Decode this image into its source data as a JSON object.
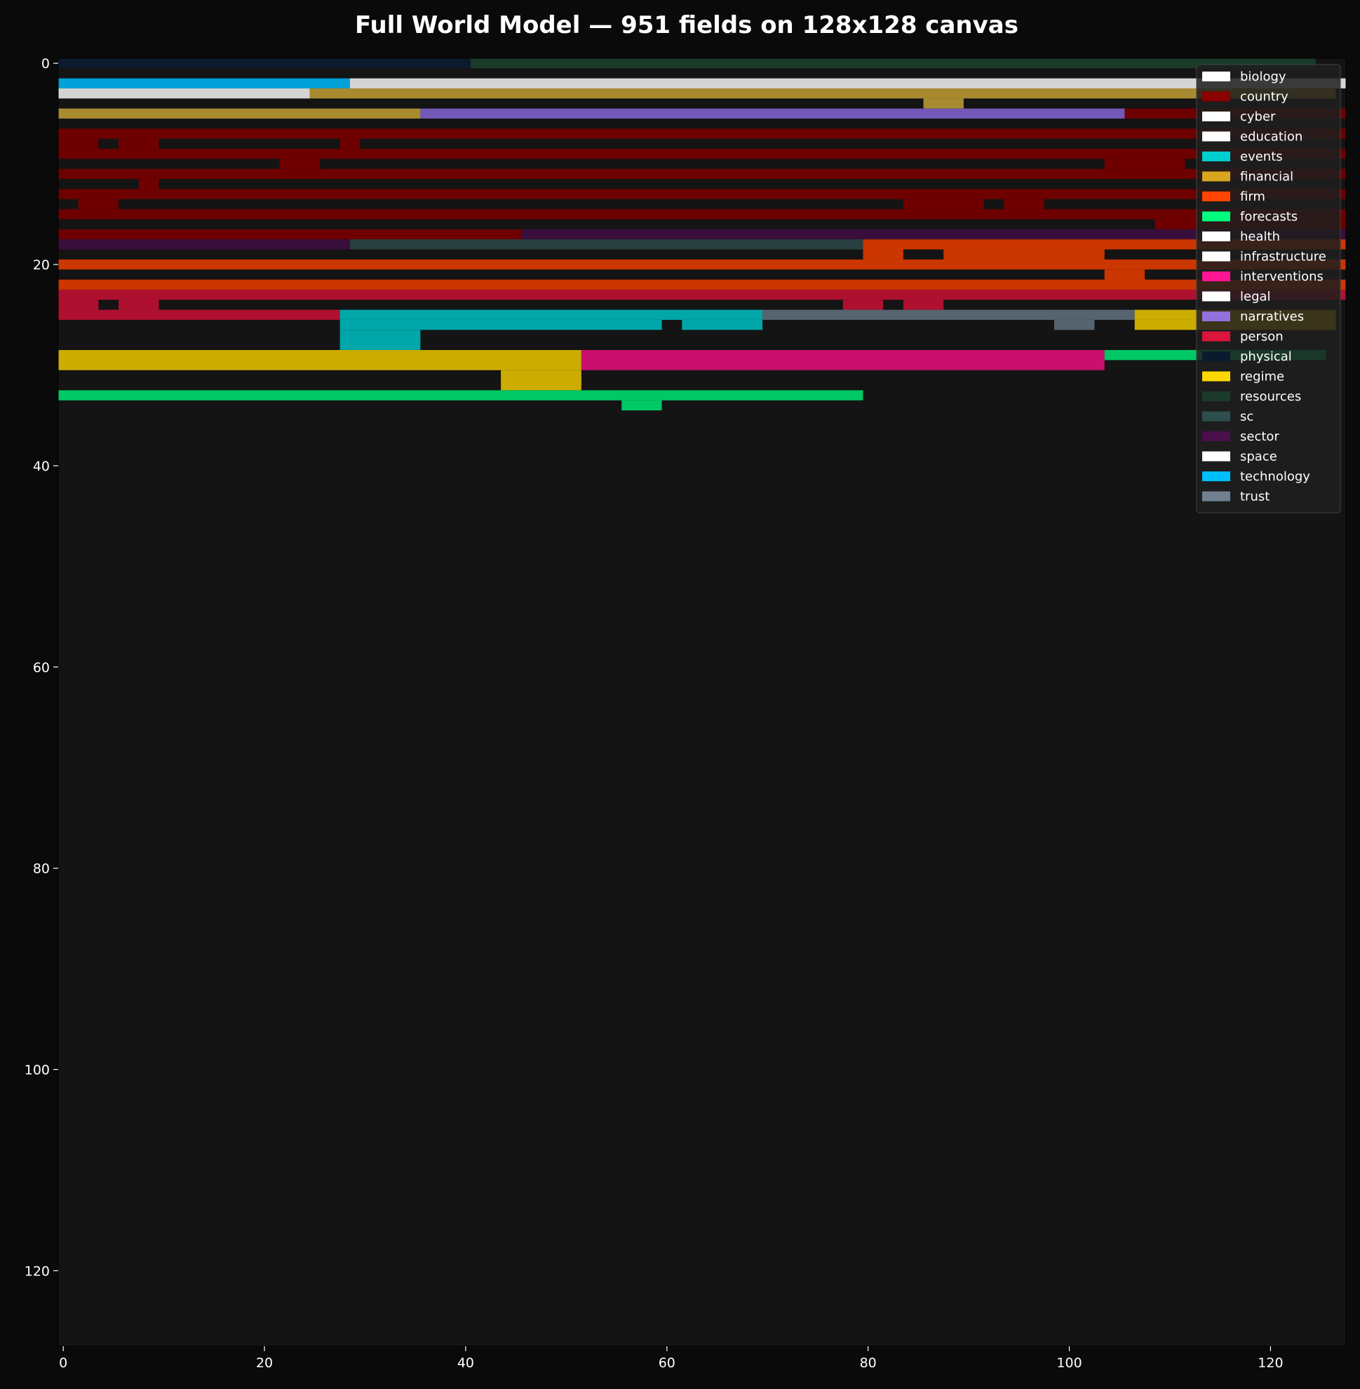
{
  "chart_data": {
    "type": "heatmap",
    "title": "Full World Model — 951 fields on 128x128 canvas",
    "xlabel": "",
    "ylabel": "",
    "xlim": [
      0,
      128
    ],
    "ylim": [
      128,
      0
    ],
    "y_inverted": true,
    "grid": false,
    "background_color": "#141414",
    "x_ticks": [
      "0",
      "20",
      "40",
      "60",
      "80",
      "100",
      "120"
    ],
    "y_ticks": [
      "0",
      "20",
      "40",
      "60",
      "80",
      "100",
      "120"
    ],
    "legend_position": "top-right",
    "legend": [
      {
        "name": "biology",
        "color": "#ffffff"
      },
      {
        "name": "country",
        "color": "#8b0000"
      },
      {
        "name": "cyber",
        "color": "#ffffff"
      },
      {
        "name": "education",
        "color": "#ffffff"
      },
      {
        "name": "events",
        "color": "#00ced1"
      },
      {
        "name": "financial",
        "color": "#daa520"
      },
      {
        "name": "firm",
        "color": "#ff4500"
      },
      {
        "name": "forecasts",
        "color": "#00ff7f"
      },
      {
        "name": "health",
        "color": "#ffffff"
      },
      {
        "name": "infrastructure",
        "color": "#ffffff"
      },
      {
        "name": "interventions",
        "color": "#ff1493"
      },
      {
        "name": "legal",
        "color": "#ffffff"
      },
      {
        "name": "narratives",
        "color": "#9370db"
      },
      {
        "name": "person",
        "color": "#dc143c"
      },
      {
        "name": "physical",
        "color": "#0b1a2e"
      },
      {
        "name": "regime",
        "color": "#ffd700"
      },
      {
        "name": "resources",
        "color": "#1a3a2a"
      },
      {
        "name": "sc",
        "color": "#2f4f4f"
      },
      {
        "name": "sector",
        "color": "#4b0f4b"
      },
      {
        "name": "space",
        "color": "#ffffff"
      },
      {
        "name": "technology",
        "color": "#00bfff"
      },
      {
        "name": "trust",
        "color": "#708090"
      }
    ],
    "cells": [
      {
        "category": "physical",
        "x0": 0,
        "x1": 41,
        "y0": 0,
        "y1": 1,
        "color": "#0b1a2e"
      },
      {
        "category": "resources",
        "x0": 41,
        "x1": 125,
        "y0": 0,
        "y1": 1,
        "color": "#1a3a2a"
      },
      {
        "category": "technology",
        "x0": 0,
        "x1": 29,
        "y0": 2,
        "y1": 3,
        "color": "#00a0d8"
      },
      {
        "category": "cyber",
        "x0": 29,
        "x1": 128,
        "y0": 2,
        "y1": 3,
        "color": "#d4d4d4"
      },
      {
        "category": "education",
        "x0": 0,
        "x1": 25,
        "y0": 3,
        "y1": 4,
        "color": "#d4d4d4"
      },
      {
        "category": "financial",
        "x0": 25,
        "x1": 127,
        "y0": 3,
        "y1": 4,
        "color": "#a88a30"
      },
      {
        "category": "financial",
        "x0": 86,
        "x1": 90,
        "y0": 4,
        "y1": 5,
        "color": "#a88a30"
      },
      {
        "category": "financial",
        "x0": 0,
        "x1": 36,
        "y0": 5,
        "y1": 6,
        "color": "#a88a30"
      },
      {
        "category": "narratives",
        "x0": 36,
        "x1": 106,
        "y0": 5,
        "y1": 6,
        "color": "#7358b8"
      },
      {
        "category": "country",
        "x0": 106,
        "x1": 128,
        "y0": 5,
        "y1": 6,
        "color": "#6e0000"
      },
      {
        "category": "country",
        "x0": 0,
        "x1": 128,
        "y0": 7,
        "y1": 8,
        "color": "#6e0000"
      },
      {
        "category": "country",
        "x0": 0,
        "x1": 4,
        "y0": 8,
        "y1": 9,
        "color": "#6e0000"
      },
      {
        "category": "country",
        "x0": 6,
        "x1": 10,
        "y0": 8,
        "y1": 9,
        "color": "#6e0000"
      },
      {
        "category": "country",
        "x0": 28,
        "x1": 30,
        "y0": 8,
        "y1": 9,
        "color": "#6e0000"
      },
      {
        "category": "country",
        "x0": 0,
        "x1": 128,
        "y0": 9,
        "y1": 10,
        "color": "#6e0000"
      },
      {
        "category": "country",
        "x0": 22,
        "x1": 26,
        "y0": 10,
        "y1": 11,
        "color": "#6e0000"
      },
      {
        "category": "country",
        "x0": 104,
        "x1": 112,
        "y0": 10,
        "y1": 11,
        "color": "#6e0000"
      },
      {
        "category": "country",
        "x0": 0,
        "x1": 128,
        "y0": 11,
        "y1": 12,
        "color": "#6e0000"
      },
      {
        "category": "country",
        "x0": 8,
        "x1": 10,
        "y0": 12,
        "y1": 13,
        "color": "#6e0000"
      },
      {
        "category": "country",
        "x0": 0,
        "x1": 128,
        "y0": 13,
        "y1": 14,
        "color": "#6e0000"
      },
      {
        "category": "country",
        "x0": 2,
        "x1": 6,
        "y0": 14,
        "y1": 15,
        "color": "#6e0000"
      },
      {
        "category": "country",
        "x0": 84,
        "x1": 92,
        "y0": 14,
        "y1": 15,
        "color": "#6e0000"
      },
      {
        "category": "country",
        "x0": 94,
        "x1": 98,
        "y0": 14,
        "y1": 15,
        "color": "#6e0000"
      },
      {
        "category": "country",
        "x0": 0,
        "x1": 128,
        "y0": 15,
        "y1": 16,
        "color": "#6e0000"
      },
      {
        "category": "country",
        "x0": 109,
        "x1": 128,
        "y0": 16,
        "y1": 17,
        "color": "#6e0000"
      },
      {
        "category": "country",
        "x0": 0,
        "x1": 46,
        "y0": 17,
        "y1": 18,
        "color": "#6e0000"
      },
      {
        "category": "sector",
        "x0": 46,
        "x1": 128,
        "y0": 17,
        "y1": 18,
        "color": "#3a0e3a"
      },
      {
        "category": "sector",
        "x0": 0,
        "x1": 29,
        "y0": 18,
        "y1": 19,
        "color": "#3a0e3a"
      },
      {
        "category": "sc",
        "x0": 29,
        "x1": 80,
        "y0": 18,
        "y1": 19,
        "color": "#284040"
      },
      {
        "category": "firm",
        "x0": 80,
        "x1": 128,
        "y0": 18,
        "y1": 19,
        "color": "#cc3600"
      },
      {
        "category": "firm",
        "x0": 80,
        "x1": 84,
        "y0": 19,
        "y1": 20,
        "color": "#cc3600"
      },
      {
        "category": "firm",
        "x0": 88,
        "x1": 104,
        "y0": 19,
        "y1": 20,
        "color": "#cc3600"
      },
      {
        "category": "firm",
        "x0": 0,
        "x1": 128,
        "y0": 20,
        "y1": 21,
        "color": "#cc3600"
      },
      {
        "category": "firm",
        "x0": 104,
        "x1": 108,
        "y0": 21,
        "y1": 22,
        "color": "#cc3600"
      },
      {
        "category": "firm",
        "x0": 0,
        "x1": 128,
        "y0": 22,
        "y1": 23,
        "color": "#cc3600"
      },
      {
        "category": "person",
        "x0": 0,
        "x1": 128,
        "y0": 23,
        "y1": 24,
        "color": "#b01030"
      },
      {
        "category": "person",
        "x0": 0,
        "x1": 4,
        "y0": 24,
        "y1": 25,
        "color": "#b01030"
      },
      {
        "category": "person",
        "x0": 6,
        "x1": 10,
        "y0": 24,
        "y1": 25,
        "color": "#b01030"
      },
      {
        "category": "person",
        "x0": 78,
        "x1": 82,
        "y0": 24,
        "y1": 25,
        "color": "#b01030"
      },
      {
        "category": "person",
        "x0": 84,
        "x1": 88,
        "y0": 24,
        "y1": 25,
        "color": "#b01030"
      },
      {
        "category": "person",
        "x0": 0,
        "x1": 28,
        "y0": 25,
        "y1": 26,
        "color": "#b01030"
      },
      {
        "category": "events",
        "x0": 28,
        "x1": 70,
        "y0": 25,
        "y1": 26,
        "color": "#00a6a8"
      },
      {
        "category": "trust",
        "x0": 70,
        "x1": 107,
        "y0": 25,
        "y1": 26,
        "color": "#566470"
      },
      {
        "category": "regime",
        "x0": 107,
        "x1": 127,
        "y0": 25,
        "y1": 26,
        "color": "#ccac00"
      },
      {
        "category": "events",
        "x0": 28,
        "x1": 60,
        "y0": 26,
        "y1": 27,
        "color": "#00a6a8"
      },
      {
        "category": "events",
        "x0": 62,
        "x1": 70,
        "y0": 26,
        "y1": 27,
        "color": "#00a6a8"
      },
      {
        "category": "trust",
        "x0": 99,
        "x1": 103,
        "y0": 26,
        "y1": 27,
        "color": "#566470"
      },
      {
        "category": "regime",
        "x0": 107,
        "x1": 127,
        "y0": 26,
        "y1": 27,
        "color": "#ccac00"
      },
      {
        "category": "events",
        "x0": 28,
        "x1": 36,
        "y0": 27,
        "y1": 29,
        "color": "#00a6a8"
      },
      {
        "category": "regime",
        "x0": 0,
        "x1": 52,
        "y0": 29,
        "y1": 31,
        "color": "#ccac00"
      },
      {
        "category": "interventions",
        "x0": 52,
        "x1": 104,
        "y0": 29,
        "y1": 31,
        "color": "#c8106c"
      },
      {
        "category": "forecasts",
        "x0": 104,
        "x1": 126,
        "y0": 29,
        "y1": 30,
        "color": "#00c864"
      },
      {
        "category": "regime",
        "x0": 44,
        "x1": 52,
        "y0": 31,
        "y1": 33,
        "color": "#ccac00"
      },
      {
        "category": "forecasts",
        "x0": 0,
        "x1": 80,
        "y0": 33,
        "y1": 34,
        "color": "#00c864"
      },
      {
        "category": "forecasts",
        "x0": 56,
        "x1": 60,
        "y0": 34,
        "y1": 35,
        "color": "#00c864"
      }
    ]
  }
}
